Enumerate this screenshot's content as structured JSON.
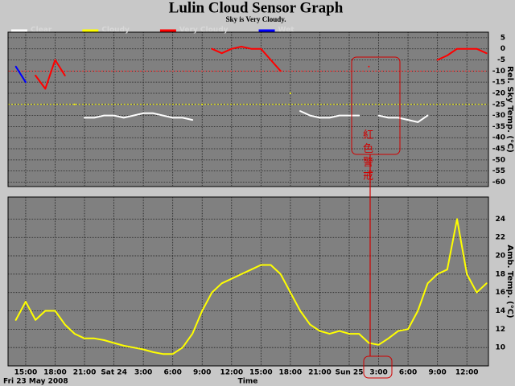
{
  "chart_data": [
    {
      "type": "line",
      "title": "Lulin Cloud Sensor Graph",
      "subtitle": "Sky is Very Cloudy.",
      "ylabel": "Rel. Sky Temp. (°C)",
      "x": [
        14,
        15,
        16,
        17,
        18,
        19,
        20,
        21,
        22,
        23,
        24,
        25,
        26,
        27,
        28,
        29,
        30,
        31,
        32,
        33,
        34,
        35,
        36,
        37,
        38,
        39,
        40,
        41,
        42,
        43,
        44,
        45,
        46,
        47,
        48,
        49,
        50,
        51,
        52,
        53,
        54,
        55,
        56,
        57,
        58,
        59,
        60,
        61,
        62
      ],
      "xlim": [
        13.2,
        62.2
      ],
      "ylim": [
        -62,
        7.5
      ],
      "yticks": [
        5,
        0,
        -5,
        -10,
        -15,
        -20,
        -25,
        -30,
        -35,
        -40,
        -45,
        -50,
        -55,
        -60
      ],
      "thresholds": [
        {
          "value": -10,
          "color": "#ff3030"
        },
        {
          "value": -25,
          "color": "#ffff00"
        }
      ],
      "series": [
        {
          "name": "Clear",
          "color": "#ffffff",
          "values": [
            null,
            null,
            null,
            null,
            null,
            null,
            null,
            -31,
            -31,
            -30,
            -30,
            -31,
            -30,
            -29,
            -29,
            -30,
            -31,
            -31,
            -32,
            null,
            null,
            null,
            null,
            null,
            null,
            null,
            null,
            null,
            null,
            -28,
            -30,
            -31,
            -31,
            -30,
            -30,
            -30,
            null,
            -30,
            -31,
            -31,
            -32,
            -33,
            -30,
            null,
            null,
            null,
            null,
            null,
            null
          ]
        },
        {
          "name": "Cloudy",
          "color": "#ffff00",
          "values": [
            null,
            null,
            null,
            null,
            null,
            null,
            -25,
            null,
            null,
            null,
            null,
            null,
            null,
            null,
            null,
            null,
            null,
            null,
            null,
            -25,
            null,
            null,
            null,
            null,
            null,
            null,
            null,
            null,
            -20,
            null,
            null,
            null,
            null,
            null,
            null,
            null,
            null,
            null,
            null,
            null,
            null,
            null,
            null,
            null,
            null,
            null,
            null,
            null,
            null
          ]
        },
        {
          "name": "Very Cloudy",
          "color": "#ff0000",
          "values": [
            null,
            null,
            -12,
            -18,
            -5,
            -12,
            null,
            null,
            null,
            null,
            null,
            null,
            null,
            null,
            null,
            null,
            null,
            null,
            null,
            null,
            0,
            -2,
            0,
            1,
            0,
            0,
            -5,
            -10,
            null,
            null,
            null,
            null,
            null,
            null,
            null,
            null,
            -8,
            null,
            null,
            null,
            null,
            null,
            null,
            -5,
            -3,
            0,
            0,
            0,
            -2
          ]
        },
        {
          "name": "Wet",
          "color": "#0000ff",
          "values": [
            -8,
            -15,
            null,
            null,
            null,
            null,
            null,
            null,
            null,
            null,
            null,
            null,
            null,
            null,
            null,
            null,
            null,
            null,
            null,
            null,
            null,
            null,
            null,
            null,
            null,
            null,
            null,
            null,
            null,
            null,
            null,
            null,
            null,
            null,
            null,
            null,
            null,
            null,
            null,
            null,
            null,
            null,
            null,
            null,
            null,
            null,
            null,
            null,
            null
          ]
        }
      ],
      "annotation": "紅色警戒"
    },
    {
      "type": "line",
      "ylabel": "Amb. Temp. (°C)",
      "xlabel": "Time",
      "date_label": "Fri 23 May 2008",
      "x": [
        14,
        15,
        16,
        17,
        18,
        19,
        20,
        21,
        22,
        23,
        24,
        25,
        26,
        27,
        28,
        29,
        30,
        31,
        32,
        33,
        34,
        35,
        36,
        37,
        38,
        39,
        40,
        41,
        42,
        43,
        44,
        45,
        46,
        47,
        48,
        49,
        50,
        51,
        52,
        53,
        54,
        55,
        56,
        57,
        58,
        59,
        60,
        61,
        62
      ],
      "xlim": [
        13.2,
        62.2
      ],
      "ylim": [
        8,
        26.4
      ],
      "yticks": [
        10,
        12,
        14,
        16,
        18,
        20,
        22,
        24
      ],
      "xticks": [
        {
          "value": 15,
          "label": "15:00"
        },
        {
          "value": 18,
          "label": "18:00"
        },
        {
          "value": 21,
          "label": "21:00"
        },
        {
          "value": 24,
          "label": "Sat 24"
        },
        {
          "value": 27,
          "label": "3:00"
        },
        {
          "value": 30,
          "label": "6:00"
        },
        {
          "value": 33,
          "label": "9:00"
        },
        {
          "value": 36,
          "label": "12:00"
        },
        {
          "value": 39,
          "label": "15:00"
        },
        {
          "value": 42,
          "label": "18:00"
        },
        {
          "value": 45,
          "label": "21:00"
        },
        {
          "value": 48,
          "label": "Sun 25"
        },
        {
          "value": 51,
          "label": "3:00"
        },
        {
          "value": 54,
          "label": "6:00"
        },
        {
          "value": 57,
          "label": "9:00"
        },
        {
          "value": 60,
          "label": "12:00"
        }
      ],
      "color": "#ffff00",
      "values": [
        13,
        15,
        13,
        14,
        14,
        12.5,
        11.5,
        11,
        11,
        10.8,
        10.5,
        10.2,
        10,
        9.8,
        9.5,
        9.3,
        9.3,
        10,
        11.5,
        14,
        16,
        17,
        17.5,
        18,
        18.5,
        19,
        19,
        18,
        16,
        14,
        12.5,
        11.8,
        11.5,
        11.8,
        11.5,
        11.5,
        10.5,
        10.3,
        11,
        11.8,
        12,
        14,
        17,
        18,
        18.5,
        24,
        18,
        16,
        17
      ]
    }
  ]
}
